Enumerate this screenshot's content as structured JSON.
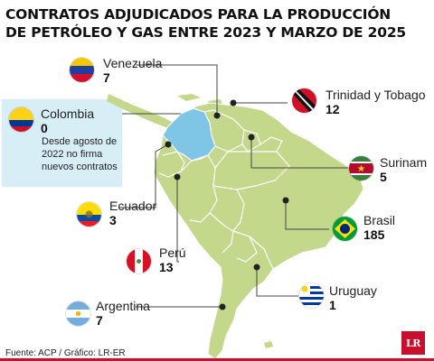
{
  "title": {
    "line1": "CONTRATOS ADJUDICADOS PARA LA PRODUCCIÓN",
    "line2": "DE PETRÓLEO Y GAS ENTRE 2023 Y MARZO DE 2025"
  },
  "countries": {
    "venezuela": {
      "name": "Venezuela",
      "count": "7"
    },
    "colombia": {
      "name": "Colombia",
      "count": "0",
      "note": "Desde agosto de 2022 no firma nuevos contratos"
    },
    "trinidad": {
      "name": "Trinidad y Tobago",
      "count": "12"
    },
    "surinam": {
      "name": "Surinam",
      "count": "5"
    },
    "ecuador": {
      "name": "Ecuador",
      "count": "3"
    },
    "brasil": {
      "name": "Brasil",
      "count": "185"
    },
    "peru": {
      "name": "Perú",
      "count": "13"
    },
    "uruguay": {
      "name": "Uruguay",
      "count": "1"
    },
    "argentina": {
      "name": "Argentina",
      "count": "7"
    }
  },
  "source": "Fuente: ACP / Gráfico: LR-ER",
  "logo_text": "LR",
  "colors": {
    "land": "#c3d88a",
    "land_dark": "#aac46b",
    "colombia": "#7fc6e6",
    "border": "#ffffff",
    "leader": "#444444",
    "brand": "#c8102e"
  }
}
